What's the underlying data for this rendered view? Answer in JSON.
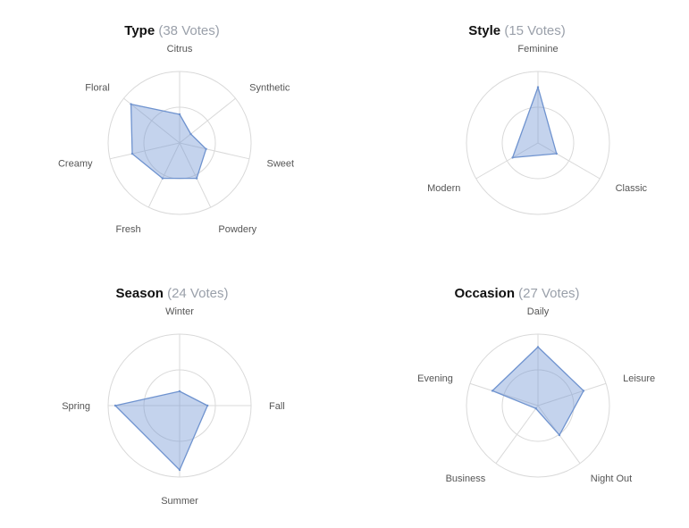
{
  "colors": {
    "fill": "#7296d4",
    "stroke": "#6f93cf",
    "grid": "#d9d9d9"
  },
  "chart_data": [
    {
      "type": "radar",
      "title": "Type",
      "votes_label": "(38 Votes)",
      "axes": [
        "Citrus",
        "Synthetic",
        "Sweet",
        "Powdery",
        "Fresh",
        "Creamy",
        "Floral"
      ],
      "values": [
        0.4,
        0.2,
        0.38,
        0.55,
        0.55,
        0.68,
        0.87
      ],
      "range": [
        0,
        1
      ],
      "grid_rings": [
        0.5,
        1
      ]
    },
    {
      "type": "radar",
      "title": "Style",
      "votes_label": "(15 Votes)",
      "axes": [
        "Feminine",
        "Classic",
        "Modern"
      ],
      "values": [
        0.78,
        0.3,
        0.41
      ],
      "range": [
        0,
        1
      ],
      "grid_rings": [
        0.5,
        1
      ]
    },
    {
      "type": "radar",
      "title": "Season",
      "votes_label": "(24 Votes)",
      "axes": [
        "Winter",
        "Fall",
        "Summer",
        "Spring"
      ],
      "values": [
        0.2,
        0.39,
        0.9,
        0.9
      ],
      "range": [
        0,
        1
      ],
      "grid_rings": [
        0.5,
        1
      ]
    },
    {
      "type": "radar",
      "title": "Occasion",
      "votes_label": "(27 Votes)",
      "axes": [
        "Daily",
        "Leisure",
        "Night Out",
        "Business",
        "Evening"
      ],
      "values": [
        0.82,
        0.67,
        0.51,
        0.05,
        0.67
      ],
      "range": [
        0,
        1
      ],
      "grid_rings": [
        0.5,
        1
      ]
    }
  ]
}
